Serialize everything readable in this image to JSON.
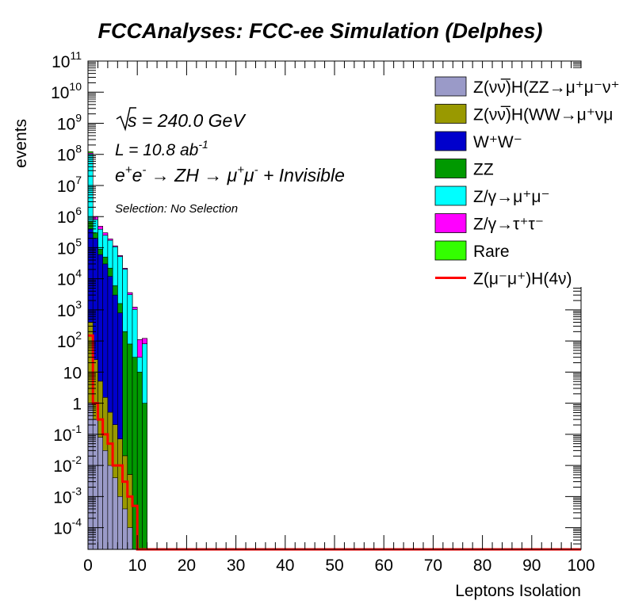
{
  "chart_data": {
    "type": "bar",
    "stacked": true,
    "log_y": true,
    "title": "FCCAnalyses: FCC-ee Simulation (Delphes)",
    "xlabel": "Leptons Isolation",
    "ylabel": "events",
    "xlim": [
      0,
      100
    ],
    "ylim": [
      2e-05,
      100000000000
    ],
    "grid": false,
    "legend_position": "top-right",
    "bin_width": 1,
    "x_ticks": [
      0,
      10,
      20,
      30,
      40,
      50,
      60,
      70,
      80,
      90,
      100
    ],
    "y_ticks": [
      {
        "value": 100000000000,
        "base": "10",
        "exp": "11"
      },
      {
        "value": 10000000000,
        "base": "10",
        "exp": "10"
      },
      {
        "value": 1000000000,
        "base": "10",
        "exp": "9"
      },
      {
        "value": 100000000,
        "base": "10",
        "exp": "8"
      },
      {
        "value": 10000000,
        "base": "10",
        "exp": "7"
      },
      {
        "value": 1000000,
        "base": "10",
        "exp": "6"
      },
      {
        "value": 100000,
        "base": "10",
        "exp": "5"
      },
      {
        "value": 10000,
        "base": "10",
        "exp": "4"
      },
      {
        "value": 1000,
        "base": "10",
        "exp": "3"
      },
      {
        "value": 100,
        "base": "10",
        "exp": "2"
      },
      {
        "value": 10,
        "base": "10",
        "exp": ""
      },
      {
        "value": 1,
        "base": "1",
        "exp": ""
      },
      {
        "value": 0.1,
        "base": "10",
        "exp": "-1"
      },
      {
        "value": 0.01,
        "base": "10",
        "exp": "-2"
      },
      {
        "value": 0.001,
        "base": "10",
        "exp": "-3"
      },
      {
        "value": 0.0001,
        "base": "10",
        "exp": "-4"
      }
    ],
    "annotations": {
      "sqrt_s": {
        "prefix": "s",
        "text": " = 240.0 GeV"
      },
      "lumi": {
        "text": "L = 10.8 ab",
        "sup": "-1"
      },
      "process": [
        "e",
        "+",
        "e",
        "-",
        " → ZH → μ",
        "+",
        "μ",
        "-",
        " + Invisible"
      ],
      "selection": "Selection: No Selection"
    },
    "series": [
      {
        "name": "Z(νν̅)H(ZZ→μ⁺μ⁻ν⁺",
        "color": "#9a9ac8",
        "values": [
          1.0,
          0.3,
          0.08,
          0.03,
          0.01,
          0.004,
          0.001,
          0.0004,
          0.0001,
          0,
          0,
          0,
          0
        ]
      },
      {
        "name": "Z(νν̅)H(WW→μ⁺νμ",
        "color": "#999900",
        "values": [
          400,
          25,
          5,
          1.5,
          0.5,
          0.2,
          0.07,
          0.02,
          0.005,
          0,
          0,
          0,
          0
        ]
      },
      {
        "name": "W⁺W⁻",
        "color": "#0000cc",
        "values": [
          400000,
          200000,
          60000,
          30000,
          12000,
          3000,
          800,
          0,
          0,
          0,
          0,
          0,
          0
        ]
      },
      {
        "name": "ZZ",
        "color": "#009900",
        "values": [
          300000,
          100000,
          30000,
          20000,
          10000,
          3000,
          800,
          200,
          80,
          30,
          10,
          1,
          0
        ]
      },
      {
        "name": "Z/γ→μ⁺μ⁻",
        "color": "#00ffff",
        "values": [
          100000000,
          500000,
          300000,
          200000,
          150000,
          100000,
          50000,
          20000,
          3000,
          1000,
          20,
          80,
          0
        ]
      },
      {
        "name": "Z/γ→τ⁺τ⁻",
        "color": "#ff00ff",
        "values": [
          10000000,
          200000,
          100000,
          50000,
          20000,
          8000,
          4000,
          1500,
          500,
          200,
          80,
          40,
          0
        ]
      },
      {
        "name": "Rare",
        "color": "#33ff00",
        "values": [
          12000000,
          10,
          5,
          2,
          1,
          0.5,
          0.2,
          0.1,
          0.05,
          0,
          0,
          0,
          0
        ]
      },
      {
        "name": "Z(μ⁻μ⁺)H(4ν)",
        "color": "#ff0000",
        "style": "line",
        "values": [
          150,
          1,
          0.3,
          0.1,
          0.05,
          0.01,
          0.01,
          0.003,
          0.001,
          0.0005,
          0,
          0,
          0
        ]
      }
    ]
  }
}
